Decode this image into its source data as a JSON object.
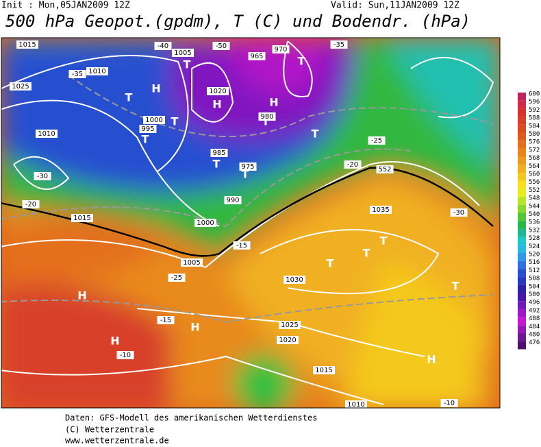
{
  "header": {
    "init": "Init : Mon,05JAN2009 12Z",
    "valid": "Valid: Sun,11JAN2009 12Z",
    "title": "500 hPa Geopot.(gpdm), T (C) und Bodendr. (hPa)"
  },
  "colorbar": {
    "levels": [
      600,
      596,
      592,
      588,
      584,
      580,
      576,
      572,
      568,
      564,
      560,
      556,
      552,
      548,
      544,
      540,
      536,
      532,
      528,
      524,
      520,
      516,
      512,
      508,
      504,
      500,
      496,
      492,
      488,
      484,
      480,
      476
    ],
    "colors": [
      "#c0245a",
      "#d12a4a",
      "#d8322e",
      "#d83e28",
      "#dc4a22",
      "#e05a1e",
      "#e4701c",
      "#e8841c",
      "#ec9a1e",
      "#f0b020",
      "#f4c81e",
      "#f8e01e",
      "#e8ec20",
      "#b8e428",
      "#88d830",
      "#50c838",
      "#28b84a",
      "#20b890",
      "#20c8c8",
      "#28b8e0",
      "#3098e8",
      "#3070e0",
      "#2850d0",
      "#2838c0",
      "#3020a8",
      "#4818a8",
      "#7018b8",
      "#a018c8",
      "#c818d0",
      "#9818b8",
      "#701890",
      "#501070"
    ]
  },
  "map_labels": [
    "H",
    "H",
    "T",
    "T",
    "T",
    "T",
    "T",
    "T",
    "T",
    "T",
    "T",
    "T",
    "T",
    "T",
    "T",
    "H",
    "H",
    "H",
    "H",
    "H",
    "1015",
    "1010",
    "1025",
    "1005",
    "1000",
    "995",
    "1010",
    "1015",
    "1020",
    "985",
    "980",
    "975",
    "965",
    "970",
    "990",
    "1005",
    "1035",
    "1030",
    "1025",
    "1020",
    "1015",
    "1010",
    "1000",
    "-35",
    "-30",
    "-25",
    "-20",
    "-15",
    "-10",
    "-40",
    "-50",
    "-35",
    "-30",
    "-25",
    "-20",
    "-15",
    "-10",
    "552"
  ],
  "footer": [
    "Daten: GFS-Modell des amerikanischen Wetterdienstes",
    "(C) Wetterzentrale",
    "www.wetterzentrale.de"
  ]
}
